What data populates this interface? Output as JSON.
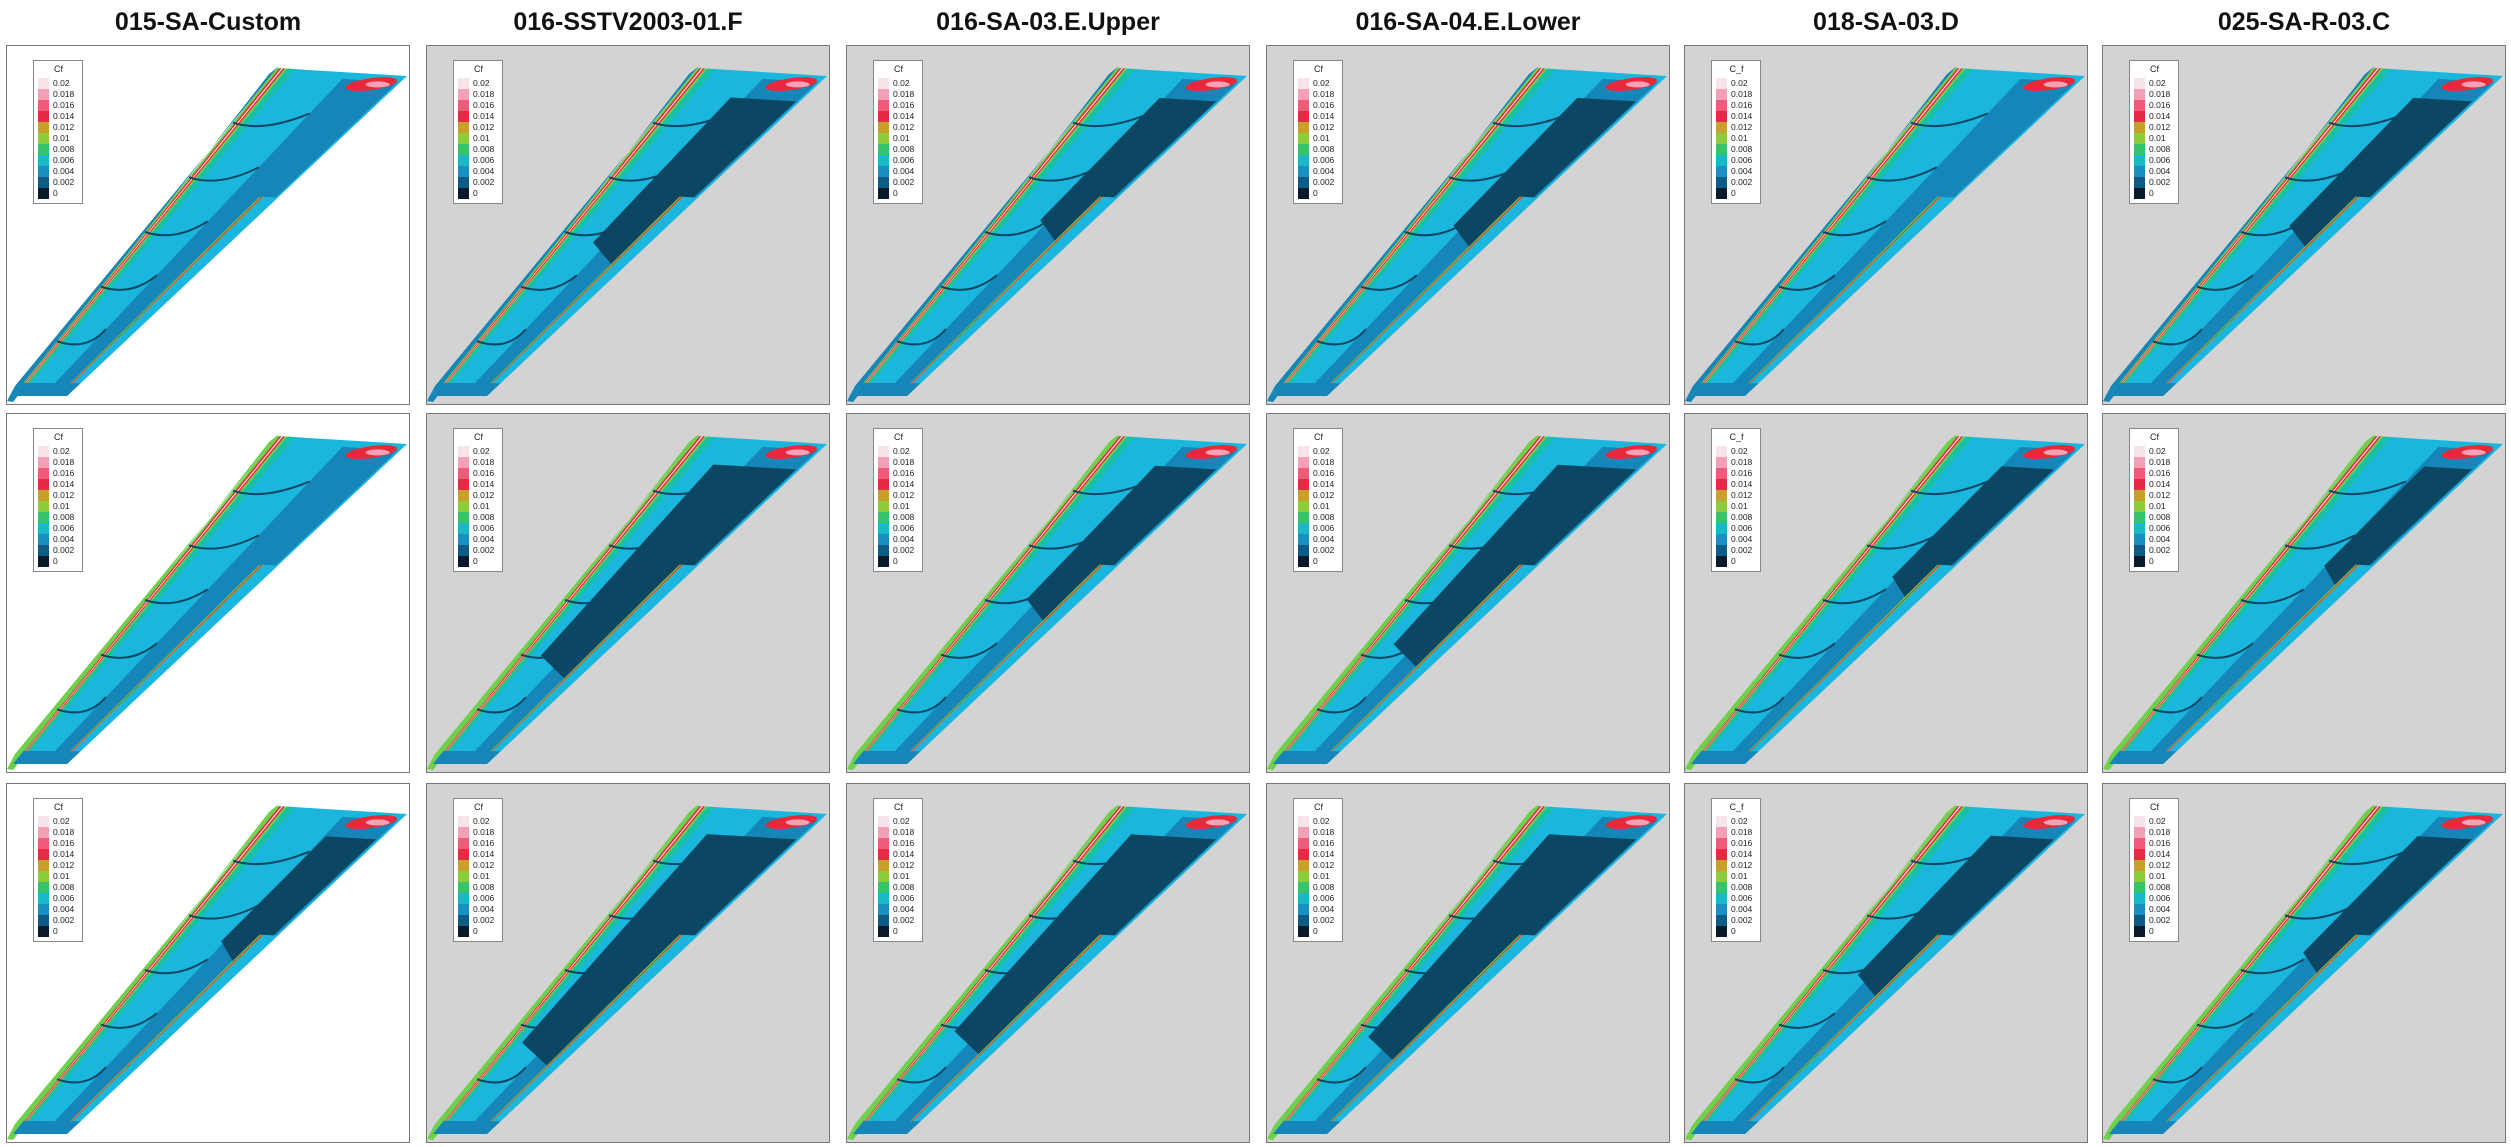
{
  "columns": [
    {
      "title": "015-SA-Custom",
      "legend_title": "Cf",
      "background": "#ffffff"
    },
    {
      "title": "016-SSTV2003-01.F",
      "legend_title": "Cf",
      "background": "#d3d3d3"
    },
    {
      "title": "016-SA-03.E.Upper",
      "legend_title": "Cf",
      "background": "#d3d3d3"
    },
    {
      "title": "016-SA-04.E.Lower",
      "legend_title": "Cf",
      "background": "#d3d3d3"
    },
    {
      "title": "018-SA-03.D",
      "legend_title": "C_f",
      "background": "#d3d3d3"
    },
    {
      "title": "025-SA-R-03.C",
      "legend_title": "Cf",
      "background": "#d3d3d3"
    }
  ],
  "rows": 3,
  "legend_levels": [
    {
      "label": "0.02",
      "color": "#f7e3ea"
    },
    {
      "label": "0.018",
      "color": "#f3a0b6"
    },
    {
      "label": "0.016",
      "color": "#ee5c7a"
    },
    {
      "label": "0.014",
      "color": "#e52a44"
    },
    {
      "label": "0.012",
      "color": "#c9a02a"
    },
    {
      "label": "0.01",
      "color": "#8dcc3a"
    },
    {
      "label": "0.008",
      "color": "#34c46a"
    },
    {
      "label": "0.006",
      "color": "#19b8c6"
    },
    {
      "label": "0.004",
      "color": "#1a8fc4"
    },
    {
      "label": "0.002",
      "color": "#0d5c86"
    },
    {
      "label": "0",
      "color": "#0a1a2a"
    }
  ],
  "colors": {
    "separation": "#0b4763",
    "low": "#1686b8",
    "base": "#1bb6de",
    "mid": "#19c0a8",
    "green": "#6fd04a",
    "yellow": "#d7d23a",
    "red": "#e8293c",
    "pink": "#f5a3b4",
    "white": "#ffffff"
  },
  "separation_level": [
    [
      0.0,
      0.45,
      0.25,
      0.3,
      0.0,
      0.3
    ],
    [
      0.0,
      0.85,
      0.35,
      0.75,
      0.15,
      0.05
    ],
    [
      0.1,
      1.0,
      0.9,
      0.95,
      0.4,
      0.2
    ]
  ]
}
